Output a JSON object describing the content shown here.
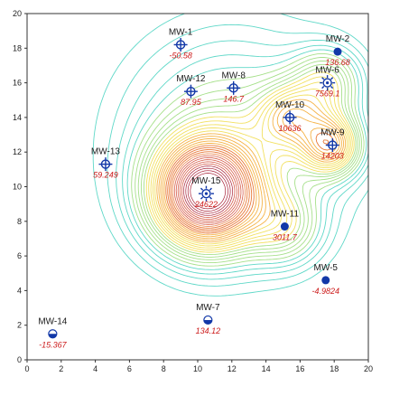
{
  "map": {
    "x_ticks": [
      "0",
      "2",
      "4",
      "6",
      "8",
      "10",
      "12",
      "14",
      "16",
      "18",
      "20"
    ],
    "y_ticks": [
      "0",
      "2",
      "4",
      "6",
      "8",
      "10",
      "12",
      "14",
      "16",
      "18",
      "20"
    ],
    "xlim": [
      0,
      20
    ],
    "ylim": [
      0,
      20
    ],
    "contour_palette": [
      "#5fd8c8",
      "#a6e08a",
      "#f2e060",
      "#f5b347",
      "#e87a3a",
      "#d14a35",
      "#a8233a"
    ],
    "value_color": "#cc1a1a",
    "symbol_color": "#1238a8"
  },
  "wells": [
    {
      "name": "MW-1",
      "value": "-50.58",
      "x": 9.0,
      "y": 18.2,
      "symbol": "open-cross-circle"
    },
    {
      "name": "MW-2",
      "value": "136.68",
      "x": 18.2,
      "y": 17.8,
      "symbol": "filled-circle"
    },
    {
      "name": "MW-6",
      "value": "7569.1",
      "x": 17.6,
      "y": 16.0,
      "symbol": "sun-circle"
    },
    {
      "name": "MW-12",
      "value": "87.95",
      "x": 9.6,
      "y": 15.5,
      "symbol": "open-cross-circle"
    },
    {
      "name": "MW-8",
      "value": "146.7",
      "x": 12.1,
      "y": 15.7,
      "symbol": "open-cross-circle"
    },
    {
      "name": "MW-10",
      "value": "10636",
      "x": 15.4,
      "y": 14.0,
      "symbol": "open-cross-circle"
    },
    {
      "name": "MW-9",
      "value": "14203",
      "x": 17.9,
      "y": 12.4,
      "symbol": "open-cross-circle"
    },
    {
      "name": "MW-13",
      "value": "59.249",
      "x": 4.6,
      "y": 11.3,
      "symbol": "open-cross-circle"
    },
    {
      "name": "MW-15",
      "value": "24622",
      "x": 10.5,
      "y": 9.6,
      "symbol": "sun-circle"
    },
    {
      "name": "MW-11",
      "value": "3011.7",
      "x": 15.1,
      "y": 7.7,
      "symbol": "filled-circle"
    },
    {
      "name": "MW-5",
      "value": "-4.9824",
      "x": 17.5,
      "y": 4.6,
      "symbol": "filled-circle"
    },
    {
      "name": "MW-7",
      "value": "134.12",
      "x": 10.6,
      "y": 2.3,
      "symbol": "half-circle"
    },
    {
      "name": "MW-14",
      "value": "-15.367",
      "x": 1.5,
      "y": 1.5,
      "symbol": "half-circle"
    }
  ]
}
